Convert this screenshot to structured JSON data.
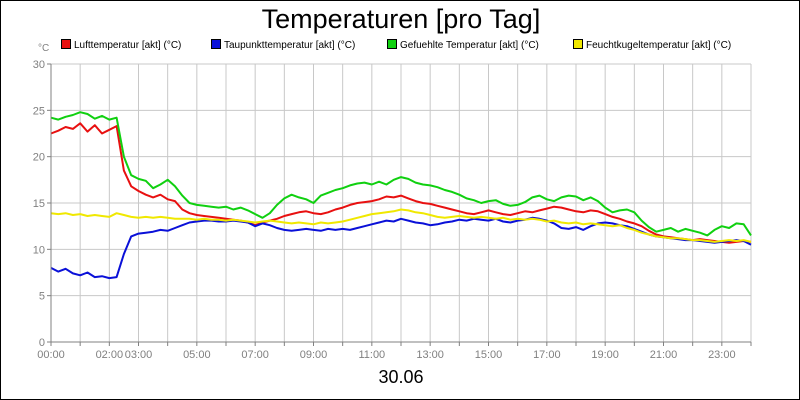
{
  "chart_data": {
    "type": "line",
    "title": "Temperaturen [pro Tag]",
    "y_unit_label": "°C",
    "date_label": "30.06",
    "xlim_hours": [
      0,
      24
    ],
    "ylim": [
      0,
      30
    ],
    "y_ticks": [
      0,
      5,
      10,
      15,
      20,
      25,
      30
    ],
    "x_tick_labels": [
      "00:00",
      "02:00",
      "03:00",
      "05:00",
      "07:00",
      "09:00",
      "11:00",
      "13:00",
      "15:00",
      "17:00",
      "19:00",
      "21:00",
      "23:00"
    ],
    "x_tick_hours": [
      0,
      2,
      3,
      5,
      7,
      9,
      11,
      13,
      15,
      17,
      19,
      21,
      23
    ],
    "grid": true,
    "legend_position": "top",
    "x_hours": [
      0,
      0.25,
      0.5,
      0.75,
      1,
      1.25,
      1.5,
      1.75,
      2,
      2.25,
      2.5,
      2.75,
      3,
      3.25,
      3.5,
      3.75,
      4,
      4.25,
      4.5,
      4.75,
      5,
      5.25,
      5.5,
      5.75,
      6,
      6.25,
      6.5,
      6.75,
      7,
      7.25,
      7.5,
      7.75,
      8,
      8.25,
      8.5,
      8.75,
      9,
      9.25,
      9.5,
      9.75,
      10,
      10.25,
      10.5,
      10.75,
      11,
      11.25,
      11.5,
      11.75,
      12,
      12.25,
      12.5,
      12.75,
      13,
      13.25,
      13.5,
      13.75,
      14,
      14.25,
      14.5,
      14.75,
      15,
      15.25,
      15.5,
      15.75,
      16,
      16.25,
      16.5,
      16.75,
      17,
      17.25,
      17.5,
      17.75,
      18,
      18.25,
      18.5,
      18.75,
      19,
      19.25,
      19.5,
      19.75,
      20,
      20.25,
      20.5,
      20.75,
      21,
      21.25,
      21.5,
      21.75,
      22,
      22.25,
      22.5,
      22.75,
      23,
      23.25,
      23.5,
      23.75,
      24
    ],
    "series": [
      {
        "name": "Lufttemperatur [akt] (°C)",
        "color": "#e81010",
        "values": [
          22.5,
          22.8,
          23.2,
          23.0,
          23.6,
          22.7,
          23.4,
          22.5,
          22.9,
          23.3,
          18.5,
          16.8,
          16.3,
          15.9,
          15.6,
          15.9,
          15.4,
          15.2,
          14.3,
          13.9,
          13.7,
          13.6,
          13.5,
          13.4,
          13.3,
          13.2,
          13.1,
          12.9,
          12.6,
          12.9,
          13.1,
          13.3,
          13.6,
          13.8,
          14.0,
          14.1,
          13.9,
          13.8,
          14.0,
          14.3,
          14.5,
          14.8,
          15.0,
          15.1,
          15.2,
          15.4,
          15.7,
          15.6,
          15.8,
          15.5,
          15.2,
          15.0,
          14.9,
          14.7,
          14.5,
          14.3,
          14.1,
          13.9,
          13.8,
          14.0,
          14.2,
          14.0,
          13.8,
          13.7,
          13.9,
          14.1,
          14.0,
          14.2,
          14.4,
          14.6,
          14.5,
          14.3,
          14.1,
          14.0,
          14.2,
          14.1,
          13.8,
          13.5,
          13.3,
          13.0,
          12.8,
          12.5,
          12.0,
          11.6,
          11.4,
          11.3,
          11.2,
          11.1,
          11.0,
          11.1,
          11.0,
          10.9,
          10.8,
          10.7,
          10.8,
          10.9,
          10.8
        ]
      },
      {
        "name": "Taupunkttemperatur [akt] (°C)",
        "color": "#0a10d8",
        "values": [
          8.0,
          7.6,
          7.9,
          7.4,
          7.2,
          7.5,
          7.0,
          7.1,
          6.9,
          7.0,
          9.5,
          11.4,
          11.7,
          11.8,
          11.9,
          12.1,
          12.0,
          12.3,
          12.6,
          12.9,
          13.0,
          13.1,
          13.1,
          13.0,
          13.0,
          13.1,
          13.0,
          12.9,
          12.5,
          12.8,
          12.6,
          12.3,
          12.1,
          12.0,
          12.1,
          12.2,
          12.1,
          12.0,
          12.2,
          12.1,
          12.2,
          12.1,
          12.3,
          12.5,
          12.7,
          12.9,
          13.1,
          13.0,
          13.3,
          13.1,
          12.9,
          12.8,
          12.6,
          12.7,
          12.9,
          13.0,
          13.2,
          13.1,
          13.3,
          13.2,
          13.1,
          13.3,
          13.0,
          12.9,
          13.1,
          13.2,
          13.4,
          13.3,
          13.1,
          12.8,
          12.3,
          12.2,
          12.4,
          12.1,
          12.5,
          12.8,
          12.9,
          12.8,
          12.6,
          12.5,
          12.2,
          11.9,
          11.6,
          11.4,
          11.3,
          11.2,
          11.1,
          11.0,
          11.0,
          10.9,
          10.8,
          10.7,
          10.8,
          10.9,
          11.0,
          10.9,
          10.5
        ]
      },
      {
        "name": "Gefuehlte Temperatur [akt] (°C)",
        "color": "#10d010",
        "values": [
          24.2,
          24.0,
          24.3,
          24.5,
          24.8,
          24.6,
          24.1,
          24.4,
          24.0,
          24.2,
          20.0,
          18.0,
          17.6,
          17.4,
          16.6,
          17.0,
          17.5,
          16.8,
          15.8,
          15.0,
          14.8,
          14.7,
          14.6,
          14.5,
          14.6,
          14.3,
          14.5,
          14.2,
          13.8,
          13.4,
          13.9,
          14.8,
          15.5,
          15.9,
          15.6,
          15.4,
          15.0,
          15.8,
          16.1,
          16.4,
          16.6,
          16.9,
          17.1,
          17.2,
          17.0,
          17.3,
          17.0,
          17.5,
          17.8,
          17.6,
          17.2,
          17.0,
          16.9,
          16.7,
          16.4,
          16.2,
          15.9,
          15.5,
          15.3,
          15.0,
          15.2,
          15.3,
          14.9,
          14.7,
          14.8,
          15.1,
          15.6,
          15.8,
          15.4,
          15.2,
          15.6,
          15.8,
          15.7,
          15.3,
          15.6,
          15.2,
          14.5,
          14.0,
          14.2,
          14.3,
          14.0,
          13.1,
          12.4,
          11.9,
          12.1,
          12.3,
          11.9,
          12.2,
          12.0,
          11.8,
          11.5,
          12.1,
          12.5,
          12.3,
          12.8,
          12.7,
          11.5
        ]
      },
      {
        "name": "Feuchtkugeltemperatur [akt] (°C)",
        "color": "#f0e800",
        "values": [
          13.9,
          13.8,
          13.9,
          13.7,
          13.8,
          13.6,
          13.7,
          13.6,
          13.5,
          13.9,
          13.7,
          13.5,
          13.4,
          13.5,
          13.4,
          13.5,
          13.4,
          13.3,
          13.3,
          13.3,
          13.2,
          13.3,
          13.2,
          13.2,
          13.1,
          13.2,
          13.1,
          13.0,
          12.9,
          13.0,
          13.1,
          13.0,
          12.9,
          12.8,
          12.9,
          12.8,
          12.7,
          12.9,
          12.8,
          12.9,
          13.0,
          13.2,
          13.4,
          13.6,
          13.8,
          13.9,
          14.0,
          14.1,
          14.3,
          14.2,
          14.0,
          13.9,
          13.7,
          13.5,
          13.4,
          13.5,
          13.6,
          13.5,
          13.4,
          13.5,
          13.4,
          13.3,
          13.4,
          13.2,
          13.3,
          13.2,
          13.3,
          13.2,
          13.0,
          13.1,
          12.9,
          12.8,
          12.9,
          12.7,
          12.8,
          12.7,
          12.6,
          12.5,
          12.6,
          12.3,
          12.1,
          11.8,
          11.6,
          11.4,
          11.3,
          11.2,
          11.2,
          11.1,
          11.0,
          11.0,
          10.9,
          10.8,
          10.9,
          11.0,
          10.9,
          11.0,
          10.8
        ]
      }
    ]
  }
}
